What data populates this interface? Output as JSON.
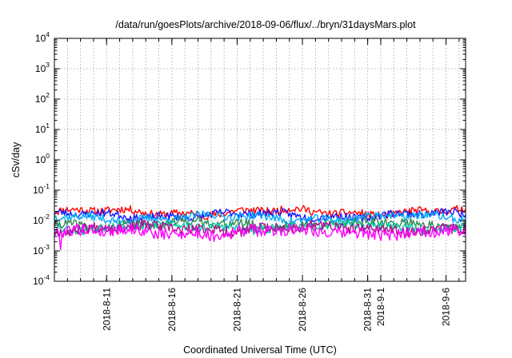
{
  "chart_data": {
    "type": "line",
    "title": "/data/run/goesPlots/archive/2018-09-06/flux/../bryn/31daysMars.plot",
    "xlabel": "Coordinated Universal Time (UTC)",
    "ylabel": "cSv/day",
    "y_scale": "log",
    "ylim": [
      0.0001,
      10000
    ],
    "xlim": [
      "2018-08-07T00:00",
      "2018-09-07T12:00"
    ],
    "grid": true,
    "legend": "none",
    "y_ticks": [
      {
        "base": "10",
        "exp": "-4",
        "value": 0.0001
      },
      {
        "base": "10",
        "exp": "-3",
        "value": 0.001
      },
      {
        "base": "10",
        "exp": "-2",
        "value": 0.01
      },
      {
        "base": "10",
        "exp": "-1",
        "value": 0.1
      },
      {
        "base": "10",
        "exp": "0",
        "value": 1
      },
      {
        "base": "10",
        "exp": "1",
        "value": 10
      },
      {
        "base": "10",
        "exp": "2",
        "value": 100
      },
      {
        "base": "10",
        "exp": "3",
        "value": 1000
      },
      {
        "base": "10",
        "exp": "4",
        "value": 10000
      }
    ],
    "x_ticks": [
      {
        "label": "2018-8-11",
        "date": "2018-08-11"
      },
      {
        "label": "2018-8-16",
        "date": "2018-08-16"
      },
      {
        "label": "2018-8-21",
        "date": "2018-08-21"
      },
      {
        "label": "2018-8-26",
        "date": "2018-08-26"
      },
      {
        "label": "2018-8-31",
        "date": "2018-08-31"
      },
      {
        "label": "2018-9-1",
        "date": "2018-09-01"
      },
      {
        "label": "2018-9-6",
        "date": "2018-09-06"
      }
    ],
    "series": [
      {
        "color": "#ff0000",
        "base": 0.019,
        "noise": 0.13,
        "samples": 330,
        "seed": 11
      },
      {
        "color": "#1a1aff",
        "base": 0.015,
        "noise": 0.13,
        "samples": 330,
        "seed": 23
      },
      {
        "color": "#00aaff",
        "base": 0.0125,
        "noise": 0.13,
        "samples": 330,
        "seed": 37
      },
      {
        "color": "#2e8b57",
        "base": 0.0075,
        "noise": 0.15,
        "samples": 330,
        "seed": 41
      },
      {
        "color": "#00c8a0",
        "base": 0.0062,
        "noise": 0.15,
        "samples": 330,
        "seed": 53
      },
      {
        "color": "#b01090",
        "base": 0.0055,
        "noise": 0.17,
        "samples": 330,
        "seed": 67
      },
      {
        "color": "#ff00ff",
        "base": 0.0042,
        "noise": 0.2,
        "samples": 330,
        "seed": 79,
        "dips": [
          {
            "date": "2018-08-07T12:00",
            "value": 0.0011
          }
        ]
      }
    ]
  }
}
